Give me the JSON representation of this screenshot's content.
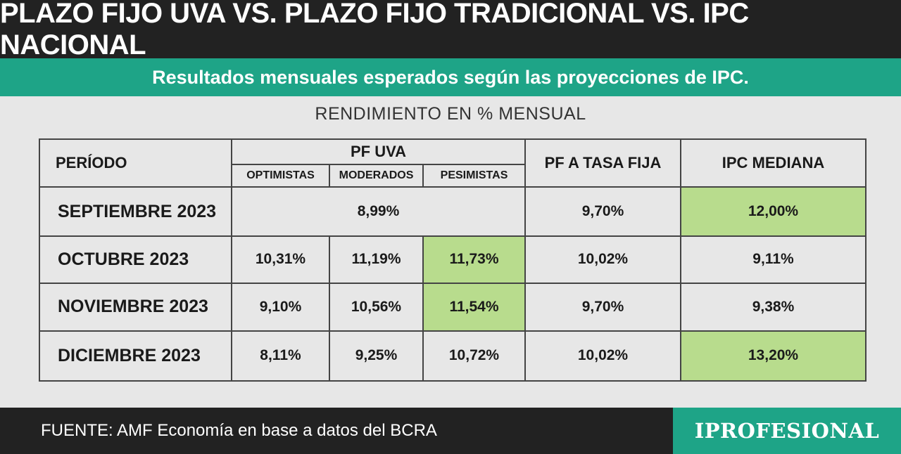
{
  "title": "PLAZO FIJO UVA VS. PLAZO FIJO TRADICIONAL VS. IPC NACIONAL",
  "subtitle": "Resultados mensuales esperados según las proyecciones de IPC.",
  "unit_label": "RENDIMIENTO EN % MENSUAL",
  "source": "FUENTE: AMF Economía en base a datos del BCRA",
  "brand": "IPROFESIONAL",
  "colors": {
    "header": "#222222",
    "accent": "#1ea487",
    "highlight": "#b8dc8d",
    "background": "#e7e7e7"
  },
  "chart_data": {
    "type": "table",
    "headers": {
      "period": "PERÍODO",
      "pf_uva": "PF UVA",
      "pf_uva_sub": [
        "OPTIMISTAS",
        "MODERADOS",
        "PESIMISTAS"
      ],
      "pf_fija": "PF A TASA FIJA",
      "ipc": "IPC MEDIANA"
    },
    "rows": [
      {
        "period": "SEPTIEMBRE 2023",
        "uva_merged": "8,99%",
        "pf_fija": "9,70%",
        "ipc": "12,00%",
        "ipc_highlight": true
      },
      {
        "period": "OCTUBRE 2023",
        "uva": [
          "10,31%",
          "11,19%",
          "11,73%"
        ],
        "uva_highlight": [
          false,
          false,
          true
        ],
        "pf_fija": "10,02%",
        "ipc": "9,11%",
        "ipc_highlight": false
      },
      {
        "period": "NOVIEMBRE 2023",
        "uva": [
          "9,10%",
          "10,56%",
          "11,54%"
        ],
        "uva_highlight": [
          false,
          false,
          true
        ],
        "pf_fija": "9,70%",
        "ipc": "9,38%",
        "ipc_highlight": false
      },
      {
        "period": "DICIEMBRE 2023",
        "uva": [
          "8,11%",
          "9,25%",
          "10,72%"
        ],
        "uva_highlight": [
          false,
          false,
          false
        ],
        "pf_fija": "10,02%",
        "ipc": "13,20%",
        "ipc_highlight": true
      }
    ]
  }
}
